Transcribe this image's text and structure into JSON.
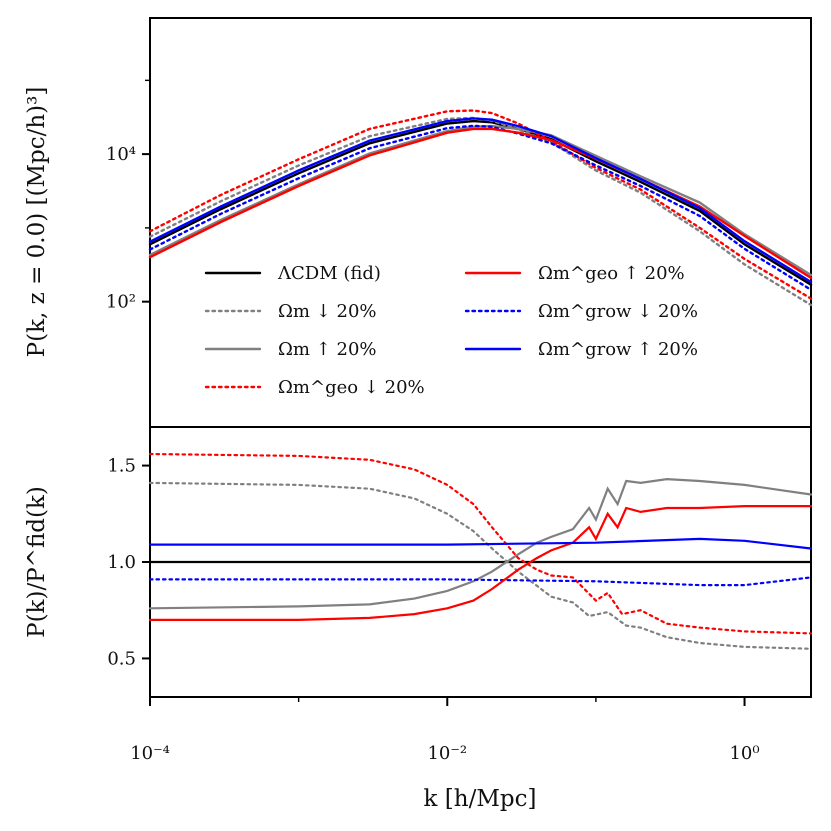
{
  "colors": {
    "fid": "#000000",
    "grey": "#808080",
    "red": "#ff0000",
    "blue": "#0000ff"
  },
  "chart_data": [
    {
      "type": "line",
      "panel": "top",
      "xscale": "log",
      "yscale": "log",
      "xlim": [
        0.0001,
        2.8
      ],
      "ylim": [
        2,
        700000
      ],
      "ylabel": "P(k, z = 0.0) [(Mpc/h)³]",
      "yticks": [
        {
          "value": 100,
          "label": "10²"
        },
        {
          "value": 10000,
          "label": "10⁴"
        }
      ],
      "series": [
        {
          "name": "ΛCDM (fid)",
          "color": "#000000",
          "dash": "solid",
          "x": [
            0.0001,
            0.0003,
            0.001,
            0.003,
            0.01,
            0.015,
            0.02,
            0.03,
            0.05,
            0.1,
            0.2,
            0.5,
            1.0,
            2.8
          ],
          "y": [
            600,
            1800,
            5500,
            14000,
            26000,
            28000,
            27000,
            22000,
            16000,
            8000,
            4200,
            1700,
            600,
            170
          ]
        },
        {
          "name": "Ωm ↓ 20%",
          "color": "#808080",
          "dash": "dot",
          "x": [
            0.0001,
            0.0003,
            0.001,
            0.003,
            0.01,
            0.015,
            0.02,
            0.03,
            0.05,
            0.1,
            0.2,
            0.5,
            1.0,
            2.8
          ],
          "y": [
            760,
            2300,
            7000,
            17500,
            30000,
            31000,
            28500,
            21500,
            14500,
            6000,
            3000,
            900,
            320,
            90
          ]
        },
        {
          "name": "Ωm ↑ 20%",
          "color": "#808080",
          "dash": "solid",
          "x": [
            0.0001,
            0.0003,
            0.001,
            0.003,
            0.01,
            0.015,
            0.02,
            0.03,
            0.05,
            0.1,
            0.2,
            0.5,
            1.0,
            2.8
          ],
          "y": [
            430,
            1280,
            3900,
            10200,
            20500,
            23500,
            24000,
            22000,
            18000,
            9500,
            5000,
            2200,
            820,
            230
          ]
        },
        {
          "name": "Ωm^geo ↓ 20%",
          "color": "#ff0000",
          "dash": "dot",
          "x": [
            0.0001,
            0.0003,
            0.001,
            0.003,
            0.01,
            0.015,
            0.02,
            0.03,
            0.05,
            0.1,
            0.2,
            0.5,
            1.0,
            2.8
          ],
          "y": [
            900,
            2800,
            8500,
            22000,
            38000,
            39000,
            36000,
            26000,
            15000,
            6500,
            3300,
            1000,
            380,
            110
          ]
        },
        {
          "name": "Ωm^grow ↓ 20%",
          "color": "#0000ff",
          "dash": "dot",
          "x": [
            0.0001,
            0.0003,
            0.001,
            0.003,
            0.01,
            0.015,
            0.02,
            0.03,
            0.05,
            0.1,
            0.2,
            0.5,
            1.0,
            2.8
          ],
          "y": [
            510,
            1550,
            4700,
            12000,
            22500,
            24200,
            23400,
            19000,
            14000,
            7000,
            3700,
            1450,
            520,
            145
          ]
        },
        {
          "name": "Ωm^geo ↑ 20%",
          "color": "#ff0000",
          "dash": "solid",
          "x": [
            0.0001,
            0.0003,
            0.001,
            0.003,
            0.01,
            0.015,
            0.02,
            0.03,
            0.05,
            0.1,
            0.2,
            0.5,
            1.0,
            2.8
          ],
          "y": [
            400,
            1200,
            3700,
            9600,
            19500,
            22000,
            22000,
            19500,
            15500,
            8700,
            4600,
            1950,
            780,
            210
          ]
        },
        {
          "name": "Ωm^grow ↑ 20%",
          "color": "#0000ff",
          "dash": "solid",
          "x": [
            0.0001,
            0.0003,
            0.001,
            0.003,
            0.01,
            0.015,
            0.02,
            0.03,
            0.05,
            0.1,
            0.2,
            0.5,
            1.0,
            2.8
          ],
          "y": [
            650,
            1950,
            6000,
            15200,
            28000,
            30500,
            29300,
            24000,
            17500,
            8800,
            4600,
            1850,
            660,
            185
          ]
        }
      ]
    },
    {
      "type": "line",
      "panel": "bottom",
      "xscale": "log",
      "yscale": "linear",
      "xlim": [
        0.0001,
        2.8
      ],
      "ylim": [
        0.3,
        1.7
      ],
      "ylabel": "P(k)/P^fid(k)",
      "xlabel": "k [h/Mpc]",
      "yticks": [
        {
          "value": 0.5,
          "label": "0.5"
        },
        {
          "value": 1.0,
          "label": "1.0"
        },
        {
          "value": 1.5,
          "label": "1.5"
        }
      ],
      "xticks": [
        {
          "value": 0.0001,
          "label": "10⁻⁴"
        },
        {
          "value": 0.01,
          "label": "10⁻²"
        },
        {
          "value": 1,
          "label": "10⁰"
        }
      ],
      "series": [
        {
          "name": "ΛCDM (fid)",
          "color": "#000000",
          "dash": "solid",
          "x": [
            0.0001,
            2.8
          ],
          "y": [
            1.0,
            1.0
          ]
        },
        {
          "name": "Ωm ↓ 20%",
          "color": "#808080",
          "dash": "dot",
          "x": [
            0.0001,
            0.001,
            0.003,
            0.006,
            0.01,
            0.015,
            0.02,
            0.03,
            0.05,
            0.07,
            0.09,
            0.12,
            0.16,
            0.2,
            0.3,
            0.5,
            1.0,
            2.8
          ],
          "y": [
            1.41,
            1.4,
            1.38,
            1.33,
            1.25,
            1.16,
            1.07,
            0.95,
            0.82,
            0.79,
            0.72,
            0.74,
            0.67,
            0.66,
            0.61,
            0.58,
            0.56,
            0.55
          ]
        },
        {
          "name": "Ωm ↑ 20%",
          "color": "#808080",
          "dash": "solid",
          "x": [
            0.0001,
            0.001,
            0.003,
            0.006,
            0.01,
            0.015,
            0.02,
            0.03,
            0.04,
            0.05,
            0.07,
            0.09,
            0.1,
            0.12,
            0.14,
            0.16,
            0.2,
            0.3,
            0.5,
            1.0,
            2.8
          ],
          "y": [
            0.76,
            0.77,
            0.78,
            0.81,
            0.85,
            0.9,
            0.95,
            1.04,
            1.1,
            1.13,
            1.17,
            1.28,
            1.22,
            1.38,
            1.3,
            1.42,
            1.41,
            1.43,
            1.42,
            1.4,
            1.35
          ]
        },
        {
          "name": "Ωm^geo ↓ 20%",
          "color": "#ff0000",
          "dash": "dot",
          "x": [
            0.0001,
            0.001,
            0.003,
            0.006,
            0.01,
            0.015,
            0.02,
            0.03,
            0.04,
            0.05,
            0.07,
            0.1,
            0.12,
            0.15,
            0.2,
            0.3,
            0.5,
            1.0,
            2.8
          ],
          "y": [
            1.56,
            1.55,
            1.53,
            1.48,
            1.4,
            1.3,
            1.18,
            1.02,
            0.96,
            0.93,
            0.92,
            0.8,
            0.84,
            0.73,
            0.75,
            0.68,
            0.66,
            0.64,
            0.63
          ]
        },
        {
          "name": "Ωm^grow ↓ 20%",
          "color": "#0000ff",
          "dash": "dot",
          "x": [
            0.0001,
            0.01,
            0.1,
            0.5,
            1.0,
            2.8
          ],
          "y": [
            0.91,
            0.91,
            0.9,
            0.88,
            0.88,
            0.92
          ]
        },
        {
          "name": "Ωm^geo ↑ 20%",
          "color": "#ff0000",
          "dash": "solid",
          "x": [
            0.0001,
            0.001,
            0.003,
            0.006,
            0.01,
            0.015,
            0.02,
            0.03,
            0.04,
            0.05,
            0.07,
            0.09,
            0.1,
            0.12,
            0.14,
            0.16,
            0.2,
            0.3,
            0.5,
            1.0,
            2.8
          ],
          "y": [
            0.7,
            0.7,
            0.71,
            0.73,
            0.76,
            0.8,
            0.86,
            0.96,
            1.02,
            1.06,
            1.1,
            1.18,
            1.12,
            1.25,
            1.18,
            1.28,
            1.26,
            1.28,
            1.28,
            1.29,
            1.29
          ]
        },
        {
          "name": "Ωm^grow ↑ 20%",
          "color": "#0000ff",
          "dash": "solid",
          "x": [
            0.0001,
            0.01,
            0.1,
            0.5,
            1.0,
            2.8
          ],
          "y": [
            1.09,
            1.09,
            1.1,
            1.12,
            1.11,
            1.07
          ]
        }
      ]
    }
  ],
  "legend": {
    "left": [
      {
        "key": "fid",
        "label": "ΛCDM (fid)",
        "color": "#000000",
        "dash": "solid"
      },
      {
        "key": "om-down",
        "label": "Ωm ↓ 20%",
        "color": "#808080",
        "dash": "dot"
      },
      {
        "key": "om-up",
        "label": "Ωm ↑ 20%",
        "color": "#808080",
        "dash": "solid"
      },
      {
        "key": "geo-down",
        "label": "Ωm^geo ↓ 20%",
        "color": "#ff0000",
        "dash": "dot"
      }
    ],
    "right": [
      {
        "key": "geo-up",
        "label": "Ωm^geo ↑ 20%",
        "color": "#ff0000",
        "dash": "solid"
      },
      {
        "key": "grow-down",
        "label": "Ωm^grow ↓ 20%",
        "color": "#0000ff",
        "dash": "dot"
      },
      {
        "key": "grow-up",
        "label": "Ωm^grow ↑ 20%",
        "color": "#0000ff",
        "dash": "solid"
      }
    ]
  }
}
